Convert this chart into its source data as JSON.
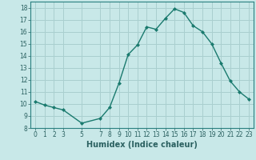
{
  "x": [
    0,
    1,
    2,
    3,
    5,
    7,
    8,
    9,
    10,
    11,
    12,
    13,
    14,
    15,
    16,
    17,
    18,
    19,
    20,
    21,
    22,
    23
  ],
  "y": [
    10.2,
    9.9,
    9.7,
    9.5,
    8.4,
    8.8,
    9.7,
    11.7,
    14.1,
    14.9,
    16.4,
    16.2,
    17.1,
    17.9,
    17.6,
    16.5,
    16.0,
    15.0,
    13.4,
    11.9,
    11.0,
    10.4
  ],
  "line_color": "#1a7a6e",
  "marker": "D",
  "marker_size": 2.0,
  "bg_color": "#c8e8e8",
  "grid_color": "#aacfcf",
  "xlabel": "Humidex (Indice chaleur)",
  "xlim": [
    -0.5,
    23.5
  ],
  "ylim": [
    8,
    18.5
  ],
  "yticks": [
    8,
    9,
    10,
    11,
    12,
    13,
    14,
    15,
    16,
    17,
    18
  ],
  "xticks": [
    0,
    1,
    2,
    3,
    5,
    7,
    8,
    9,
    10,
    11,
    12,
    13,
    14,
    15,
    16,
    17,
    18,
    19,
    20,
    21,
    22,
    23
  ],
  "tick_label_color": "#2a6060",
  "axis_color": "#2a8080",
  "font_size": 5.5,
  "label_font_size": 7.0,
  "linewidth": 1.0
}
